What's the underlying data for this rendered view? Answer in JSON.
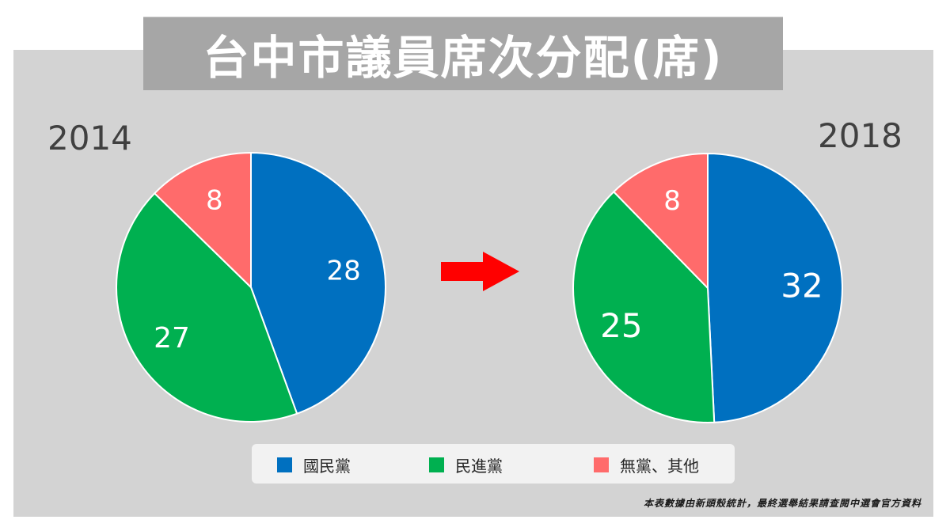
{
  "title": "台中市議員席次分配(席)",
  "footnote": "本表數據由新頭殼統計，最終選舉結果請查閱中選會官方資料",
  "colors": {
    "kmt": "#0070c0",
    "dpp": "#00b050",
    "other": "#ff6b6b",
    "panel": "#d3d3d3",
    "title_bg": "#a6a6a6",
    "arrow": "#ff0000"
  },
  "legend": [
    {
      "label": "國民黨",
      "color": "#0070c0"
    },
    {
      "label": "民進黨",
      "color": "#00b050"
    },
    {
      "label": "無黨、其他",
      "color": "#ff6b6b"
    }
  ],
  "arrow_icon": "right-arrow-icon",
  "chart_data": [
    {
      "type": "pie",
      "title": "2014",
      "categories": [
        "國民黨",
        "民進黨",
        "無黨、其他"
      ],
      "values": [
        28,
        27,
        8
      ],
      "colors": [
        "#0070c0",
        "#00b050",
        "#ff6b6b"
      ],
      "start": "12 o'clock, clockwise"
    },
    {
      "type": "pie",
      "title": "2018",
      "categories": [
        "國民黨",
        "民進黨",
        "無黨、其他"
      ],
      "values": [
        32,
        25,
        8
      ],
      "colors": [
        "#0070c0",
        "#00b050",
        "#ff6b6b"
      ],
      "start": "12 o'clock, clockwise"
    }
  ]
}
